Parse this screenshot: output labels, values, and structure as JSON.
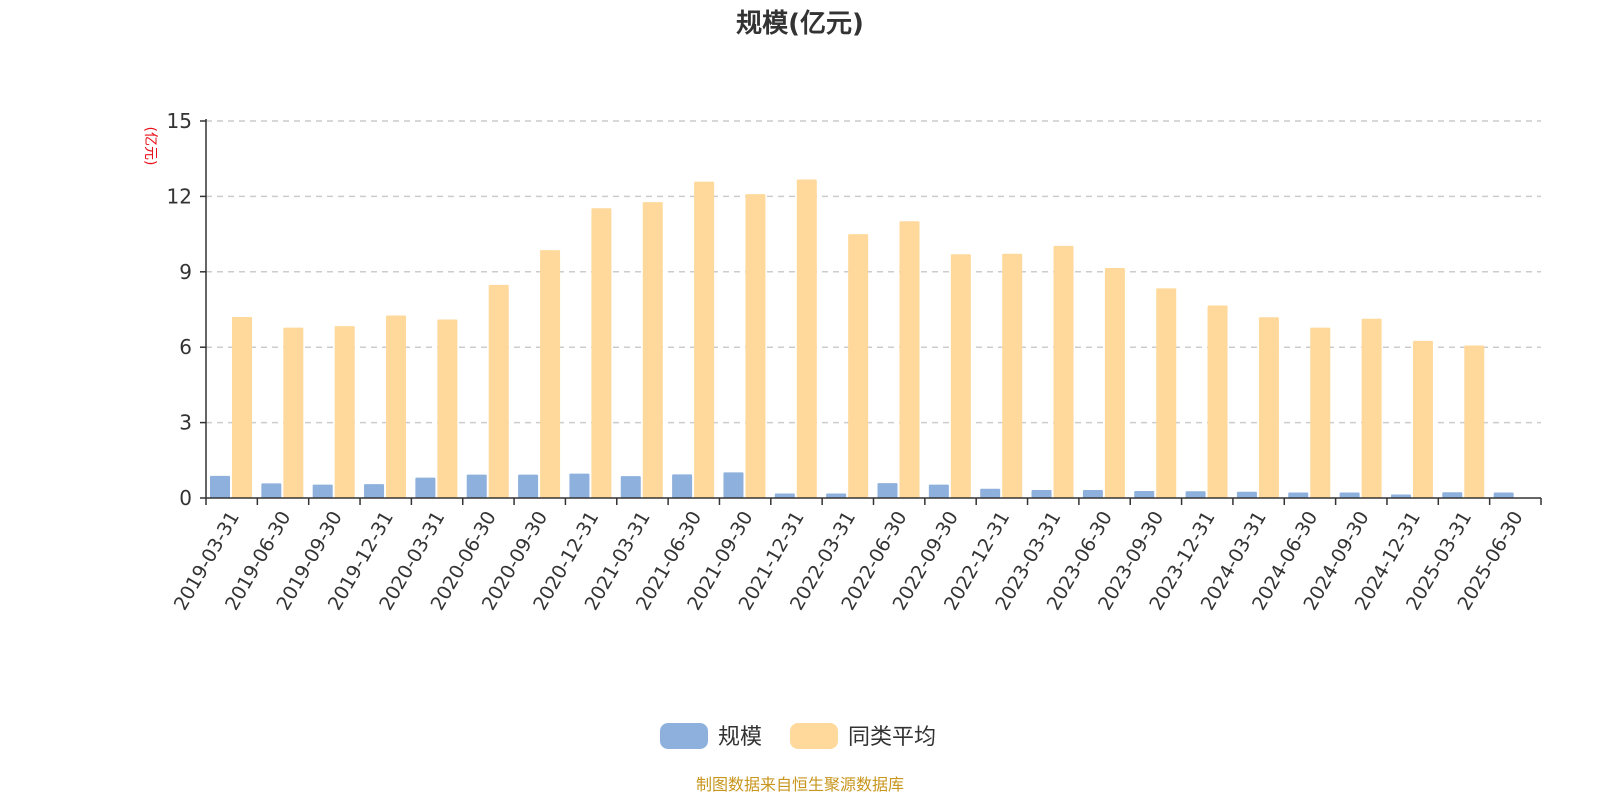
{
  "chart_data": {
    "type": "bar",
    "title": "规模(亿元)",
    "unit_label": "(亿元)",
    "categories": [
      "2019-03-31",
      "2019-06-30",
      "2019-09-30",
      "2019-12-31",
      "2020-03-31",
      "2020-06-30",
      "2020-09-30",
      "2020-12-31",
      "2021-03-31",
      "2021-06-30",
      "2021-09-30",
      "2021-12-31",
      "2022-03-31",
      "2022-06-30",
      "2022-09-30",
      "2022-12-31",
      "2023-03-31",
      "2023-06-30",
      "2023-09-30",
      "2023-12-31",
      "2024-03-31",
      "2024-06-30",
      "2024-09-30",
      "2024-12-31",
      "2025-03-31",
      "2025-06-30"
    ],
    "series": [
      {
        "name": "规模",
        "color": "#8eb0dc",
        "values": [
          0.88,
          0.58,
          0.53,
          0.55,
          0.81,
          0.93,
          0.93,
          0.97,
          0.87,
          0.94,
          1.02,
          0.18,
          0.18,
          0.59,
          0.53,
          0.37,
          0.32,
          0.32,
          0.28,
          0.27,
          0.25,
          0.22,
          0.22,
          0.14,
          0.23,
          0.22
        ]
      },
      {
        "name": "同类平均",
        "color": "#ffd99b",
        "values": [
          7.2,
          6.78,
          6.84,
          7.26,
          7.1,
          8.48,
          9.86,
          11.53,
          11.77,
          12.59,
          12.09,
          12.67,
          10.5,
          11.01,
          9.7,
          9.72,
          10.03,
          9.15,
          8.34,
          7.66,
          7.19,
          6.78,
          7.13,
          6.25,
          6.07,
          null
        ]
      }
    ],
    "ylim": [
      0,
      15
    ],
    "yticks": [
      0,
      3,
      6,
      9,
      12,
      15
    ],
    "grid": true,
    "legend_position": "bottom-center"
  },
  "source_note": "制图数据来自恒生聚源数据库"
}
